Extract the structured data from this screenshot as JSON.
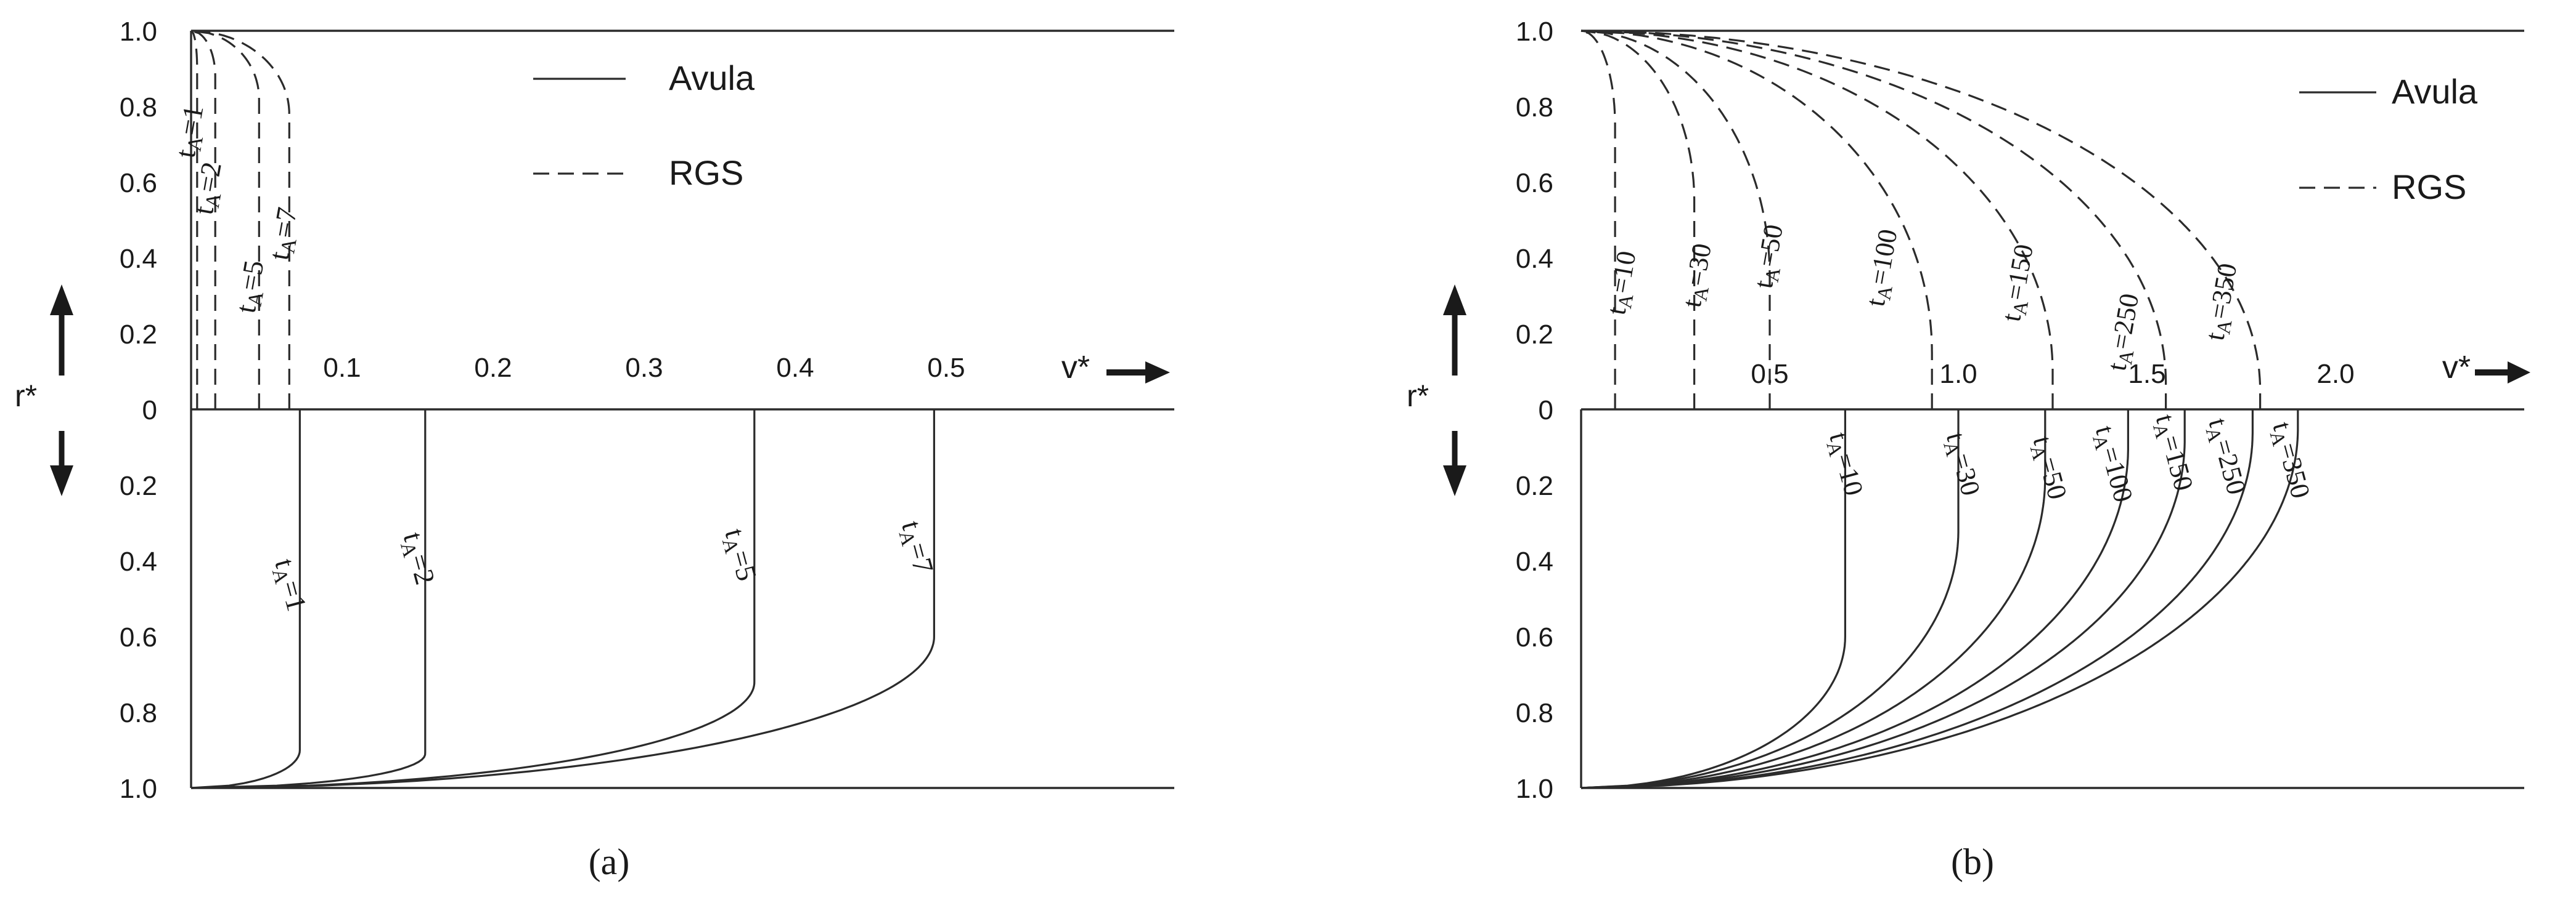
{
  "chart_data": [
    {
      "type": "line",
      "panel_label": "(a)",
      "ylabel": "r*",
      "xlabel": "v*",
      "x_ticks": [
        "0.1",
        "0.2",
        "0.3",
        "0.4",
        "0.5"
      ],
      "y_ticks_top": [
        "1.0",
        "0.8",
        "0.6",
        "0.4",
        "0.2",
        "0"
      ],
      "y_ticks_bottom": [
        "0.2",
        "0.4",
        "0.6",
        "0.8",
        "1.0"
      ],
      "xlim": [
        0,
        0.65
      ],
      "legend": [
        {
          "label": "Avula",
          "style": "solid"
        },
        {
          "label": "RGS",
          "style": "dashed"
        }
      ],
      "series": [
        {
          "name": "t_A=1",
          "half": "bottom",
          "style": "solid",
          "vmax": 0.072,
          "k": 0.9
        },
        {
          "name": "t_A=2",
          "half": "bottom",
          "style": "solid",
          "vmax": 0.155,
          "k": 0.91
        },
        {
          "name": "t_A=5",
          "half": "bottom",
          "style": "solid",
          "vmax": 0.373,
          "k": 0.72
        },
        {
          "name": "t_A=7",
          "half": "bottom",
          "style": "solid",
          "vmax": 0.492,
          "k": 0.6
        },
        {
          "name": "t_A=1",
          "half": "top",
          "style": "dashed",
          "vmax": 0.004,
          "k": 0.9
        },
        {
          "name": "t_A=2",
          "half": "top",
          "style": "dashed",
          "vmax": 0.016,
          "k": 0.88
        },
        {
          "name": "t_A=5",
          "half": "top",
          "style": "dashed",
          "vmax": 0.045,
          "k": 0.82
        },
        {
          "name": "t_A=7",
          "half": "top",
          "style": "dashed",
          "vmax": 0.065,
          "k": 0.78
        }
      ],
      "curve_labels": {
        "top": [
          {
            "t": "1",
            "v": 0.005,
            "r": 0.73
          },
          {
            "t": "2",
            "v": 0.017,
            "r": 0.58
          },
          {
            "t": "5",
            "v": 0.045,
            "r": 0.32
          },
          {
            "t": "7",
            "v": 0.067,
            "r": 0.46
          }
        ],
        "bottom": [
          {
            "t": "1",
            "v": 0.06,
            "r": 0.47
          },
          {
            "t": "2",
            "v": 0.145,
            "r": 0.4
          },
          {
            "t": "5",
            "v": 0.358,
            "r": 0.39
          },
          {
            "t": "7",
            "v": 0.475,
            "r": 0.37
          }
        ]
      }
    },
    {
      "type": "line",
      "panel_label": "(b)",
      "ylabel": "r*",
      "xlabel": "v*",
      "x_ticks": [
        "0.5",
        "1.0",
        "1.5",
        "2.0"
      ],
      "y_ticks_top": [
        "1.0",
        "0.8",
        "0.6",
        "0.4",
        "0.2",
        "0"
      ],
      "y_ticks_bottom": [
        "0.2",
        "0.4",
        "0.6",
        "0.8",
        "1.0"
      ],
      "xlim": [
        0,
        2.5
      ],
      "legend": [
        {
          "label": "Avula",
          "style": "solid"
        },
        {
          "label": "RGS",
          "style": "dashed"
        }
      ],
      "series": [
        {
          "name": "t_A=10",
          "half": "bottom",
          "style": "solid",
          "vmax": 0.7,
          "k": 0.6
        },
        {
          "name": "t_A=30",
          "half": "bottom",
          "style": "solid",
          "vmax": 1.0,
          "k": 0.32
        },
        {
          "name": "t_A=50",
          "half": "bottom",
          "style": "solid",
          "vmax": 1.23,
          "k": 0.18
        },
        {
          "name": "t_A=100",
          "half": "bottom",
          "style": "solid",
          "vmax": 1.45,
          "k": 0.1
        },
        {
          "name": "t_A=150",
          "half": "bottom",
          "style": "solid",
          "vmax": 1.6,
          "k": 0.08
        },
        {
          "name": "t_A=250",
          "half": "bottom",
          "style": "solid",
          "vmax": 1.78,
          "k": 0.06
        },
        {
          "name": "t_A=350",
          "half": "bottom",
          "style": "solid",
          "vmax": 1.9,
          "k": 0.05
        },
        {
          "name": "t_A=10",
          "half": "top",
          "style": "dashed",
          "vmax": 0.09,
          "k": 0.75
        },
        {
          "name": "t_A=30",
          "half": "top",
          "style": "dashed",
          "vmax": 0.3,
          "k": 0.55
        },
        {
          "name": "t_A=50",
          "half": "top",
          "style": "dashed",
          "vmax": 0.5,
          "k": 0.35
        },
        {
          "name": "t_A=100",
          "half": "top",
          "style": "dashed",
          "vmax": 0.93,
          "k": 0.15
        },
        {
          "name": "t_A=150",
          "half": "top",
          "style": "dashed",
          "vmax": 1.25,
          "k": 0.1
        },
        {
          "name": "t_A=250",
          "half": "top",
          "style": "dashed",
          "vmax": 1.55,
          "k": 0.07
        },
        {
          "name": "t_A=350",
          "half": "top",
          "style": "dashed",
          "vmax": 1.8,
          "k": 0.05
        }
      ],
      "curve_labels": {
        "top": [
          {
            "t": "10",
            "v": 0.13,
            "r": 0.33
          },
          {
            "t": "30",
            "v": 0.33,
            "r": 0.35
          },
          {
            "t": "50",
            "v": 0.52,
            "r": 0.4
          },
          {
            "t": "100",
            "v": 0.82,
            "r": 0.37
          },
          {
            "t": "150",
            "v": 1.18,
            "r": 0.33
          },
          {
            "t": "250",
            "v": 1.46,
            "r": 0.2
          },
          {
            "t": "350",
            "v": 1.72,
            "r": 0.28
          }
        ],
        "bottom": [
          {
            "t": "10",
            "v": 0.68,
            "r": 0.15
          },
          {
            "t": "30",
            "v": 0.99,
            "r": 0.15
          },
          {
            "t": "50",
            "v": 1.22,
            "r": 0.16
          },
          {
            "t": "100",
            "v": 1.39,
            "r": 0.15
          },
          {
            "t": "150",
            "v": 1.55,
            "r": 0.12
          },
          {
            "t": "250",
            "v": 1.69,
            "r": 0.13
          },
          {
            "t": "350",
            "v": 1.86,
            "r": 0.14
          }
        ]
      }
    }
  ]
}
